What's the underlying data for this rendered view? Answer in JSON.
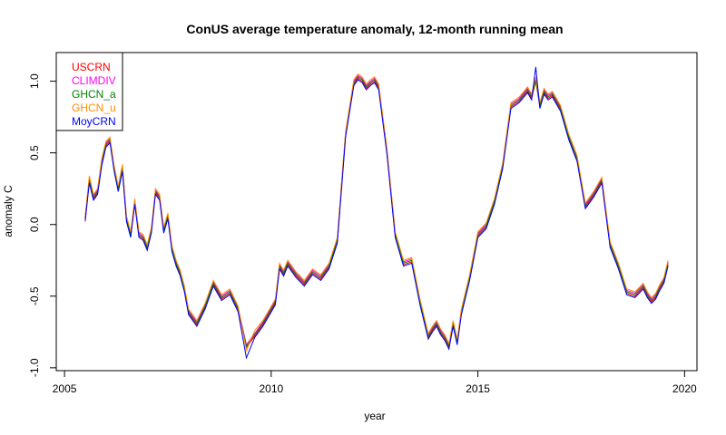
{
  "chart_data": {
    "type": "line",
    "title": "ConUS average temperature anomaly, 12-month running mean",
    "xlabel": "year",
    "ylabel": "anomaly C",
    "xlim": [
      2004.8,
      2020.3
    ],
    "ylim": [
      -1.02,
      1.2
    ],
    "x_ticks": [
      2005,
      2010,
      2015,
      2020
    ],
    "y_ticks": [
      -1.0,
      -0.5,
      0.0,
      0.5,
      1.0
    ],
    "x_tick_labels": [
      "2005",
      "2010",
      "2015",
      "2020"
    ],
    "y_tick_labels": [
      "-1.0",
      "-0.5",
      "0.0",
      "0.5",
      "1.0"
    ],
    "legend_position": "top-left",
    "x": [
      2005.5,
      2005.6,
      2005.7,
      2005.8,
      2005.9,
      2006.0,
      2006.1,
      2006.2,
      2006.3,
      2006.4,
      2006.5,
      2006.6,
      2006.7,
      2006.8,
      2006.9,
      2007.0,
      2007.1,
      2007.2,
      2007.3,
      2007.4,
      2007.5,
      2007.6,
      2007.7,
      2007.8,
      2007.9,
      2008.0,
      2008.2,
      2008.4,
      2008.6,
      2008.8,
      2009.0,
      2009.2,
      2009.4,
      2009.6,
      2009.8,
      2010.0,
      2010.1,
      2010.2,
      2010.3,
      2010.4,
      2010.6,
      2010.8,
      2011.0,
      2011.2,
      2011.4,
      2011.6,
      2011.8,
      2012.0,
      2012.1,
      2012.2,
      2012.3,
      2012.4,
      2012.5,
      2012.6,
      2012.8,
      2013.0,
      2013.2,
      2013.4,
      2013.6,
      2013.8,
      2013.9,
      2014.0,
      2014.1,
      2014.2,
      2014.3,
      2014.4,
      2014.5,
      2014.6,
      2014.8,
      2015.0,
      2015.2,
      2015.4,
      2015.6,
      2015.8,
      2016.0,
      2016.2,
      2016.3,
      2016.4,
      2016.5,
      2016.6,
      2016.7,
      2016.8,
      2017.0,
      2017.2,
      2017.4,
      2017.6,
      2017.8,
      2018.0,
      2018.2,
      2018.4,
      2018.6,
      2018.8,
      2019.0,
      2019.1,
      2019.2,
      2019.3,
      2019.4,
      2019.5,
      2019.6
    ],
    "series": [
      {
        "name": "USCRN",
        "color": "#ff0000",
        "values": [
          0.02,
          0.3,
          0.18,
          0.22,
          0.42,
          0.55,
          0.58,
          0.38,
          0.24,
          0.38,
          0.03,
          -0.08,
          0.15,
          -0.08,
          -0.1,
          -0.17,
          -0.05,
          0.22,
          0.18,
          -0.05,
          0.05,
          -0.18,
          -0.28,
          -0.35,
          -0.46,
          -0.62,
          -0.7,
          -0.58,
          -0.42,
          -0.52,
          -0.48,
          -0.6,
          -0.86,
          -0.78,
          -0.7,
          -0.6,
          -0.55,
          -0.3,
          -0.35,
          -0.28,
          -0.36,
          -0.42,
          -0.34,
          -0.38,
          -0.3,
          -0.12,
          0.62,
          0.98,
          1.02,
          1.0,
          0.95,
          0.98,
          1.0,
          0.95,
          0.5,
          -0.08,
          -0.28,
          -0.26,
          -0.55,
          -0.79,
          -0.74,
          -0.7,
          -0.76,
          -0.8,
          -0.86,
          -0.7,
          -0.83,
          -0.62,
          -0.38,
          -0.08,
          -0.02,
          0.15,
          0.4,
          0.82,
          0.86,
          0.93,
          0.88,
          1.0,
          0.82,
          0.92,
          0.88,
          0.9,
          0.8,
          0.6,
          0.45,
          0.12,
          0.2,
          0.3,
          -0.15,
          -0.3,
          -0.48,
          -0.5,
          -0.44,
          -0.5,
          -0.54,
          -0.51,
          -0.45,
          -0.4,
          -0.28
        ]
      },
      {
        "name": "CLIMDIV",
        "color": "#ff00ff",
        "values": [
          0.04,
          0.32,
          0.2,
          0.24,
          0.44,
          0.57,
          0.6,
          0.4,
          0.26,
          0.4,
          0.05,
          -0.06,
          0.17,
          -0.06,
          -0.08,
          -0.15,
          -0.03,
          0.24,
          0.2,
          -0.03,
          0.07,
          -0.16,
          -0.26,
          -0.33,
          -0.44,
          -0.6,
          -0.68,
          -0.56,
          -0.4,
          -0.5,
          -0.46,
          -0.58,
          -0.84,
          -0.76,
          -0.68,
          -0.58,
          -0.53,
          -0.28,
          -0.33,
          -0.26,
          -0.34,
          -0.4,
          -0.32,
          -0.36,
          -0.28,
          -0.1,
          0.64,
          1.0,
          1.04,
          1.02,
          0.97,
          1.0,
          1.02,
          0.97,
          0.52,
          -0.06,
          -0.26,
          -0.24,
          -0.53,
          -0.77,
          -0.72,
          -0.68,
          -0.74,
          -0.78,
          -0.84,
          -0.68,
          -0.81,
          -0.6,
          -0.36,
          -0.06,
          0.0,
          0.17,
          0.42,
          0.84,
          0.88,
          0.95,
          0.9,
          1.02,
          0.84,
          0.94,
          0.9,
          0.92,
          0.82,
          0.62,
          0.47,
          0.14,
          0.22,
          0.32,
          -0.13,
          -0.28,
          -0.46,
          -0.48,
          -0.42,
          -0.48,
          -0.52,
          -0.49,
          -0.43,
          -0.38,
          -0.26
        ]
      },
      {
        "name": "GHCN_a",
        "color": "#008000",
        "values": [
          0.05,
          0.31,
          0.19,
          0.23,
          0.45,
          0.56,
          0.59,
          0.39,
          0.25,
          0.39,
          0.04,
          -0.07,
          0.16,
          -0.07,
          -0.09,
          -0.16,
          -0.04,
          0.23,
          0.19,
          -0.04,
          0.06,
          -0.17,
          -0.27,
          -0.34,
          -0.45,
          -0.61,
          -0.69,
          -0.57,
          -0.41,
          -0.51,
          -0.47,
          -0.59,
          -0.85,
          -0.77,
          -0.69,
          -0.59,
          -0.54,
          -0.29,
          -0.34,
          -0.27,
          -0.35,
          -0.41,
          -0.33,
          -0.37,
          -0.29,
          -0.11,
          0.63,
          0.99,
          1.03,
          1.01,
          0.96,
          0.99,
          1.01,
          0.96,
          0.51,
          -0.07,
          -0.27,
          -0.25,
          -0.54,
          -0.78,
          -0.73,
          -0.69,
          -0.75,
          -0.79,
          -0.85,
          -0.69,
          -0.82,
          -0.61,
          -0.37,
          -0.07,
          -0.01,
          0.16,
          0.41,
          0.83,
          0.87,
          0.94,
          0.89,
          1.01,
          0.83,
          0.93,
          0.89,
          0.91,
          0.81,
          0.61,
          0.46,
          0.13,
          0.21,
          0.31,
          -0.14,
          -0.29,
          -0.47,
          -0.49,
          -0.43,
          -0.49,
          -0.53,
          -0.5,
          -0.44,
          -0.39,
          -0.27
        ]
      },
      {
        "name": "GHCN_u",
        "color": "#ff8c00",
        "values": [
          0.06,
          0.34,
          0.21,
          0.25,
          0.46,
          0.58,
          0.61,
          0.41,
          0.27,
          0.42,
          0.06,
          -0.05,
          0.18,
          -0.05,
          -0.07,
          -0.14,
          -0.02,
          0.25,
          0.21,
          -0.02,
          0.08,
          -0.15,
          -0.25,
          -0.32,
          -0.43,
          -0.59,
          -0.67,
          -0.55,
          -0.39,
          -0.49,
          -0.45,
          -0.57,
          -0.88,
          -0.74,
          -0.67,
          -0.57,
          -0.52,
          -0.27,
          -0.32,
          -0.25,
          -0.33,
          -0.39,
          -0.31,
          -0.35,
          -0.27,
          -0.09,
          0.65,
          1.01,
          1.05,
          1.03,
          0.98,
          1.01,
          1.03,
          0.98,
          0.53,
          -0.05,
          -0.25,
          -0.23,
          -0.52,
          -0.76,
          -0.71,
          -0.67,
          -0.73,
          -0.77,
          -0.83,
          -0.67,
          -0.8,
          -0.59,
          -0.35,
          -0.05,
          0.01,
          0.18,
          0.43,
          0.85,
          0.89,
          0.96,
          0.91,
          1.03,
          0.85,
          0.95,
          0.91,
          0.93,
          0.83,
          0.63,
          0.48,
          0.15,
          0.23,
          0.33,
          -0.12,
          -0.27,
          -0.45,
          -0.47,
          -0.41,
          -0.47,
          -0.51,
          -0.48,
          -0.42,
          -0.37,
          -0.25
        ]
      },
      {
        "name": "MoyCRN",
        "color": "#0000ff",
        "values": [
          0.03,
          0.29,
          0.17,
          0.21,
          0.41,
          0.54,
          0.57,
          0.37,
          0.23,
          0.37,
          0.02,
          -0.09,
          0.14,
          -0.09,
          -0.11,
          -0.18,
          -0.06,
          0.21,
          0.17,
          -0.06,
          0.04,
          -0.19,
          -0.29,
          -0.36,
          -0.47,
          -0.63,
          -0.71,
          -0.59,
          -0.43,
          -0.53,
          -0.49,
          -0.61,
          -0.93,
          -0.79,
          -0.71,
          -0.61,
          -0.56,
          -0.31,
          -0.36,
          -0.29,
          -0.37,
          -0.43,
          -0.35,
          -0.39,
          -0.31,
          -0.13,
          0.61,
          0.97,
          1.01,
          0.99,
          0.94,
          0.97,
          0.99,
          0.94,
          0.49,
          -0.09,
          -0.29,
          -0.27,
          -0.56,
          -0.8,
          -0.75,
          -0.71,
          -0.77,
          -0.81,
          -0.87,
          -0.71,
          -0.84,
          -0.63,
          -0.39,
          -0.09,
          -0.03,
          0.14,
          0.39,
          0.81,
          0.85,
          0.92,
          0.87,
          1.1,
          0.81,
          0.91,
          0.87,
          0.89,
          0.79,
          0.59,
          0.44,
          0.11,
          0.19,
          0.29,
          -0.16,
          -0.31,
          -0.49,
          -0.51,
          -0.45,
          -0.51,
          -0.55,
          -0.52,
          -0.46,
          -0.41,
          -0.29
        ]
      }
    ]
  }
}
